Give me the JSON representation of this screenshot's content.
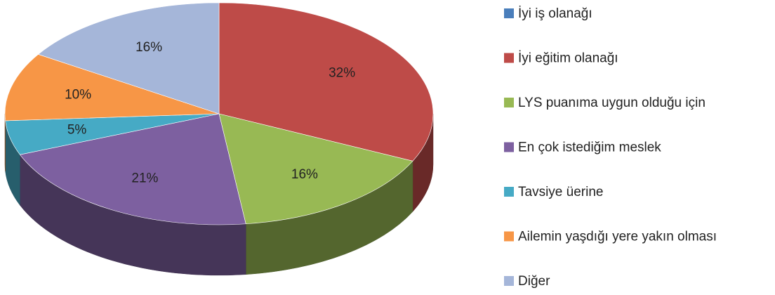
{
  "chart_data": {
    "type": "pie",
    "categories": [
      "İyi iş olanağı",
      "İyi eğitim olanağı",
      "LYS puanıma uygun olduğu için",
      "En çok istediğim meslek",
      "Tavsiye üerine",
      "Ailemin yaşdığı yere yakın olması",
      "Diğer"
    ],
    "values": [
      0,
      32,
      16,
      21,
      5,
      10,
      16
    ],
    "value_labels": [
      null,
      "32%",
      "16%",
      "21%",
      "5%",
      "10%",
      "16%"
    ],
    "colors": [
      "#4a7ebb",
      "#be4b48",
      "#98b954",
      "#7d60a0",
      "#46aac5",
      "#f79646",
      "#a5b6d9"
    ],
    "legend": "right"
  }
}
